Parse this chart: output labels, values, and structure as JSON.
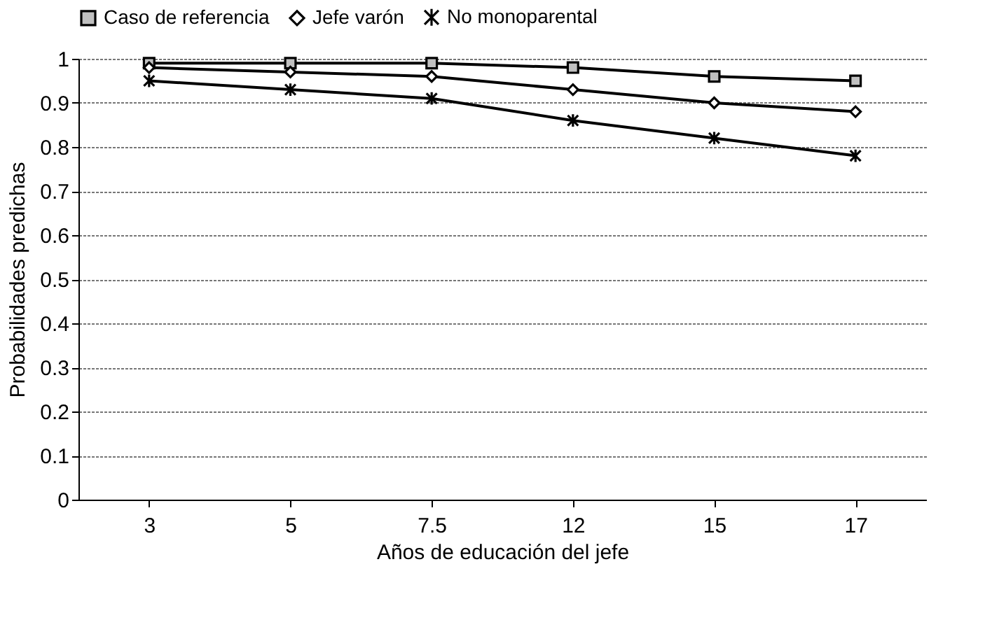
{
  "chart_data": {
    "type": "line",
    "xlabel": "Años de educación del jefe",
    "ylabel": "Probabilidades predichas",
    "categories": [
      "3",
      "5",
      "7.5",
      "12",
      "15",
      "17"
    ],
    "series": [
      {
        "name": "Caso de referencia",
        "color": "#000000",
        "marker": "square",
        "values": [
          0.99,
          0.99,
          0.99,
          0.98,
          0.96,
          0.95
        ]
      },
      {
        "name": "Jefe varón",
        "color": "#000000",
        "marker": "diamond",
        "values": [
          0.98,
          0.97,
          0.96,
          0.93,
          0.9,
          0.88
        ]
      },
      {
        "name": "No monoparental",
        "color": "#000000",
        "marker": "cross",
        "values": [
          0.95,
          0.93,
          0.91,
          0.86,
          0.82,
          0.78
        ]
      }
    ],
    "ylim": [
      0,
      1
    ],
    "yticks": [
      0,
      0.1,
      0.2,
      0.3,
      0.4,
      0.5,
      0.6,
      0.7,
      0.8,
      0.9,
      1
    ],
    "grid": "y",
    "legend": "top",
    "line_style": "solid"
  }
}
